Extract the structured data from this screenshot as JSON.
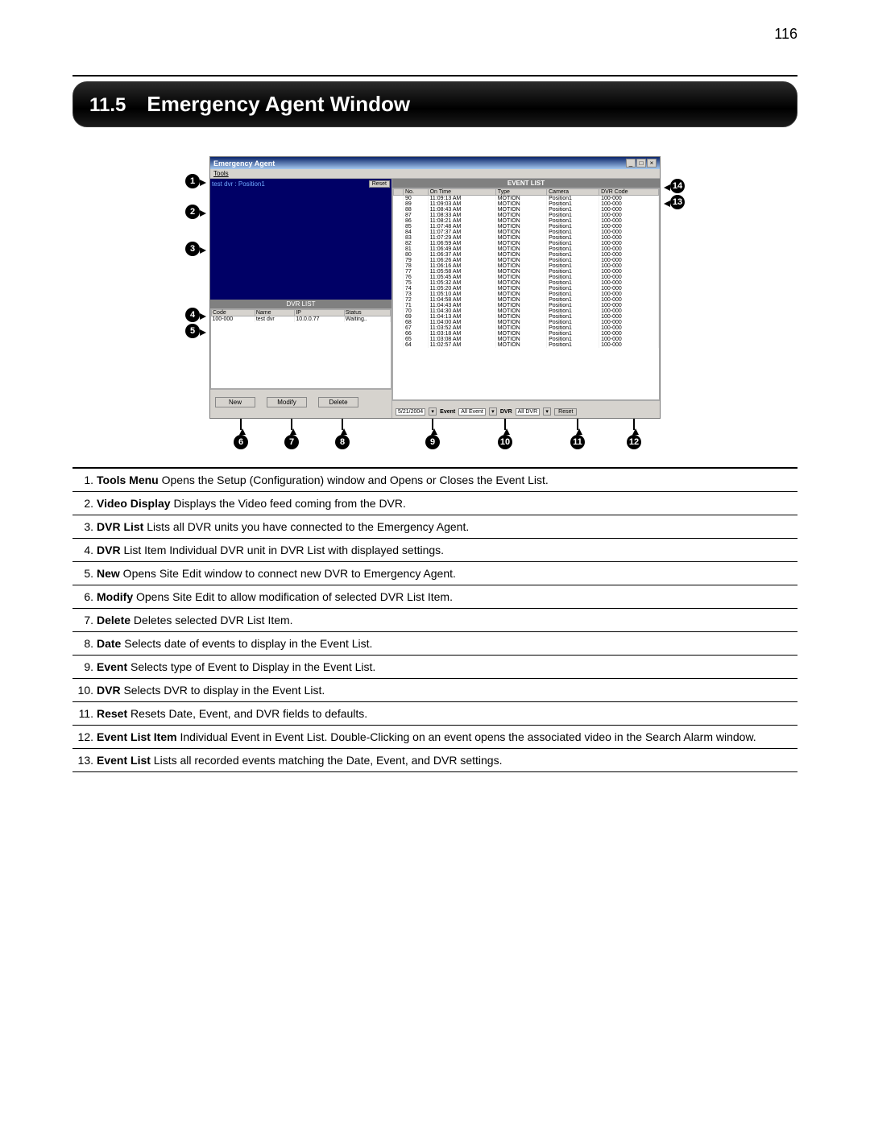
{
  "page_number": "116",
  "section_number": "11.5",
  "section_title": "Emergency Agent Window",
  "window": {
    "title": "Emergency Agent",
    "menu_tools": "Tools",
    "video_label": "test dvr : Position1",
    "reset_in_video": "Reset",
    "dvr_list_header": "DVR LIST",
    "dvr_cols": [
      "Code",
      "Name",
      "IP",
      "Status"
    ],
    "dvr_row": [
      "100-000",
      "test dvr",
      "10.0.0.77",
      "Waiting.."
    ],
    "btn_new": "New",
    "btn_modify": "Modify",
    "btn_delete": "Delete",
    "event_list_header": "EVENT LIST",
    "event_cols": [
      "No.",
      "On Time",
      "Type",
      "Camera",
      "DVR Code"
    ],
    "event_rows": [
      [
        "90",
        "11:09:13 AM",
        "MOTION",
        "Position1",
        "100-000"
      ],
      [
        "89",
        "11:09:03 AM",
        "MOTION",
        "Position1",
        "100-000"
      ],
      [
        "88",
        "11:08:43 AM",
        "MOTION",
        "Position1",
        "100-000"
      ],
      [
        "87",
        "11:08:33 AM",
        "MOTION",
        "Position1",
        "100-000"
      ],
      [
        "86",
        "11:08:21 AM",
        "MOTION",
        "Position1",
        "100-000"
      ],
      [
        "85",
        "11:07:48 AM",
        "MOTION",
        "Position1",
        "100-000"
      ],
      [
        "84",
        "11:07:37 AM",
        "MOTION",
        "Position1",
        "100-000"
      ],
      [
        "83",
        "11:07:29 AM",
        "MOTION",
        "Position1",
        "100-000"
      ],
      [
        "82",
        "11:06:59 AM",
        "MOTION",
        "Position1",
        "100-000"
      ],
      [
        "81",
        "11:06:49 AM",
        "MOTION",
        "Position1",
        "100-000"
      ],
      [
        "80",
        "11:06:37 AM",
        "MOTION",
        "Position1",
        "100-000"
      ],
      [
        "79",
        "11:06:26 AM",
        "MOTION",
        "Position1",
        "100-000"
      ],
      [
        "78",
        "11:06:16 AM",
        "MOTION",
        "Position1",
        "100-000"
      ],
      [
        "77",
        "11:05:58 AM",
        "MOTION",
        "Position1",
        "100-000"
      ],
      [
        "76",
        "11:05:45 AM",
        "MOTION",
        "Position1",
        "100-000"
      ],
      [
        "75",
        "11:05:32 AM",
        "MOTION",
        "Position1",
        "100-000"
      ],
      [
        "74",
        "11:05:20 AM",
        "MOTION",
        "Position1",
        "100-000"
      ],
      [
        "73",
        "11:05:10 AM",
        "MOTION",
        "Position1",
        "100-000"
      ],
      [
        "72",
        "11:04:58 AM",
        "MOTION",
        "Position1",
        "100-000"
      ],
      [
        "71",
        "11:04:43 AM",
        "MOTION",
        "Position1",
        "100-000"
      ],
      [
        "70",
        "11:04:30 AM",
        "MOTION",
        "Position1",
        "100-000"
      ],
      [
        "69",
        "11:04:13 AM",
        "MOTION",
        "Position1",
        "100-000"
      ],
      [
        "68",
        "11:04:00 AM",
        "MOTION",
        "Position1",
        "100-000"
      ],
      [
        "67",
        "11:03:52 AM",
        "MOTION",
        "Position1",
        "100-000"
      ],
      [
        "66",
        "11:03:18 AM",
        "MOTION",
        "Position1",
        "100-000"
      ],
      [
        "65",
        "11:03:08 AM",
        "MOTION",
        "Position1",
        "100-000"
      ],
      [
        "64",
        "11:02:57 AM",
        "MOTION",
        "Position1",
        "100-000"
      ]
    ],
    "date_value": "5/21/2004",
    "event_label": "Event",
    "event_value": "All Event",
    "dvr_label": "DVR",
    "dvr_value": "All DVR",
    "reset_btn": "Reset"
  },
  "callouts": {
    "c1": "1",
    "c2": "2",
    "c3": "3",
    "c4": "4",
    "c5": "5",
    "c6": "6",
    "c7": "7",
    "c8": "8",
    "c9": "9",
    "c10": "10",
    "c11": "11",
    "c12": "12",
    "c13": "13",
    "c14": "14"
  },
  "descriptions": [
    {
      "n": "1.",
      "t": "Tools Menu",
      "d": " Opens the Setup (Configuration) window and Opens or Closes the Event List."
    },
    {
      "n": "2.",
      "t": "Video Display",
      "d": " Displays the Video feed coming from the DVR."
    },
    {
      "n": "3.",
      "t": "DVR List",
      "d": " Lists all DVR units you have connected to the Emergency Agent."
    },
    {
      "n": "4.",
      "t": "DVR",
      "d": " List Item Individual DVR unit in DVR List with displayed settings."
    },
    {
      "n": "5.",
      "t": "New",
      "d": " Opens Site Edit window to connect new DVR to Emergency Agent."
    },
    {
      "n": "6.",
      "t": "Modify",
      "d": " Opens Site Edit to allow modification of selected DVR List Item."
    },
    {
      "n": "7.",
      "t": "Delete",
      "d": " Deletes selected DVR List Item."
    },
    {
      "n": "8.",
      "t": "Date",
      "d": " Selects date of events to display in the Event List."
    },
    {
      "n": "9.",
      "t": "Event",
      "d": " Selects type of Event to Display in the Event List."
    },
    {
      "n": "10.",
      "t": "DVR",
      "d": " Selects DVR to display in the Event List."
    },
    {
      "n": "11.",
      "t": "Reset",
      "d": " Resets Date, Event, and DVR fields to defaults."
    },
    {
      "n": "12.",
      "t": "Event List Item",
      "d": " Individual Event in Event List. Double-Clicking on an event opens the associated video in the Search Alarm window."
    },
    {
      "n": "13.",
      "t": "Event List",
      "d": " Lists all recorded events matching the Date, Event, and DVR settings."
    }
  ]
}
